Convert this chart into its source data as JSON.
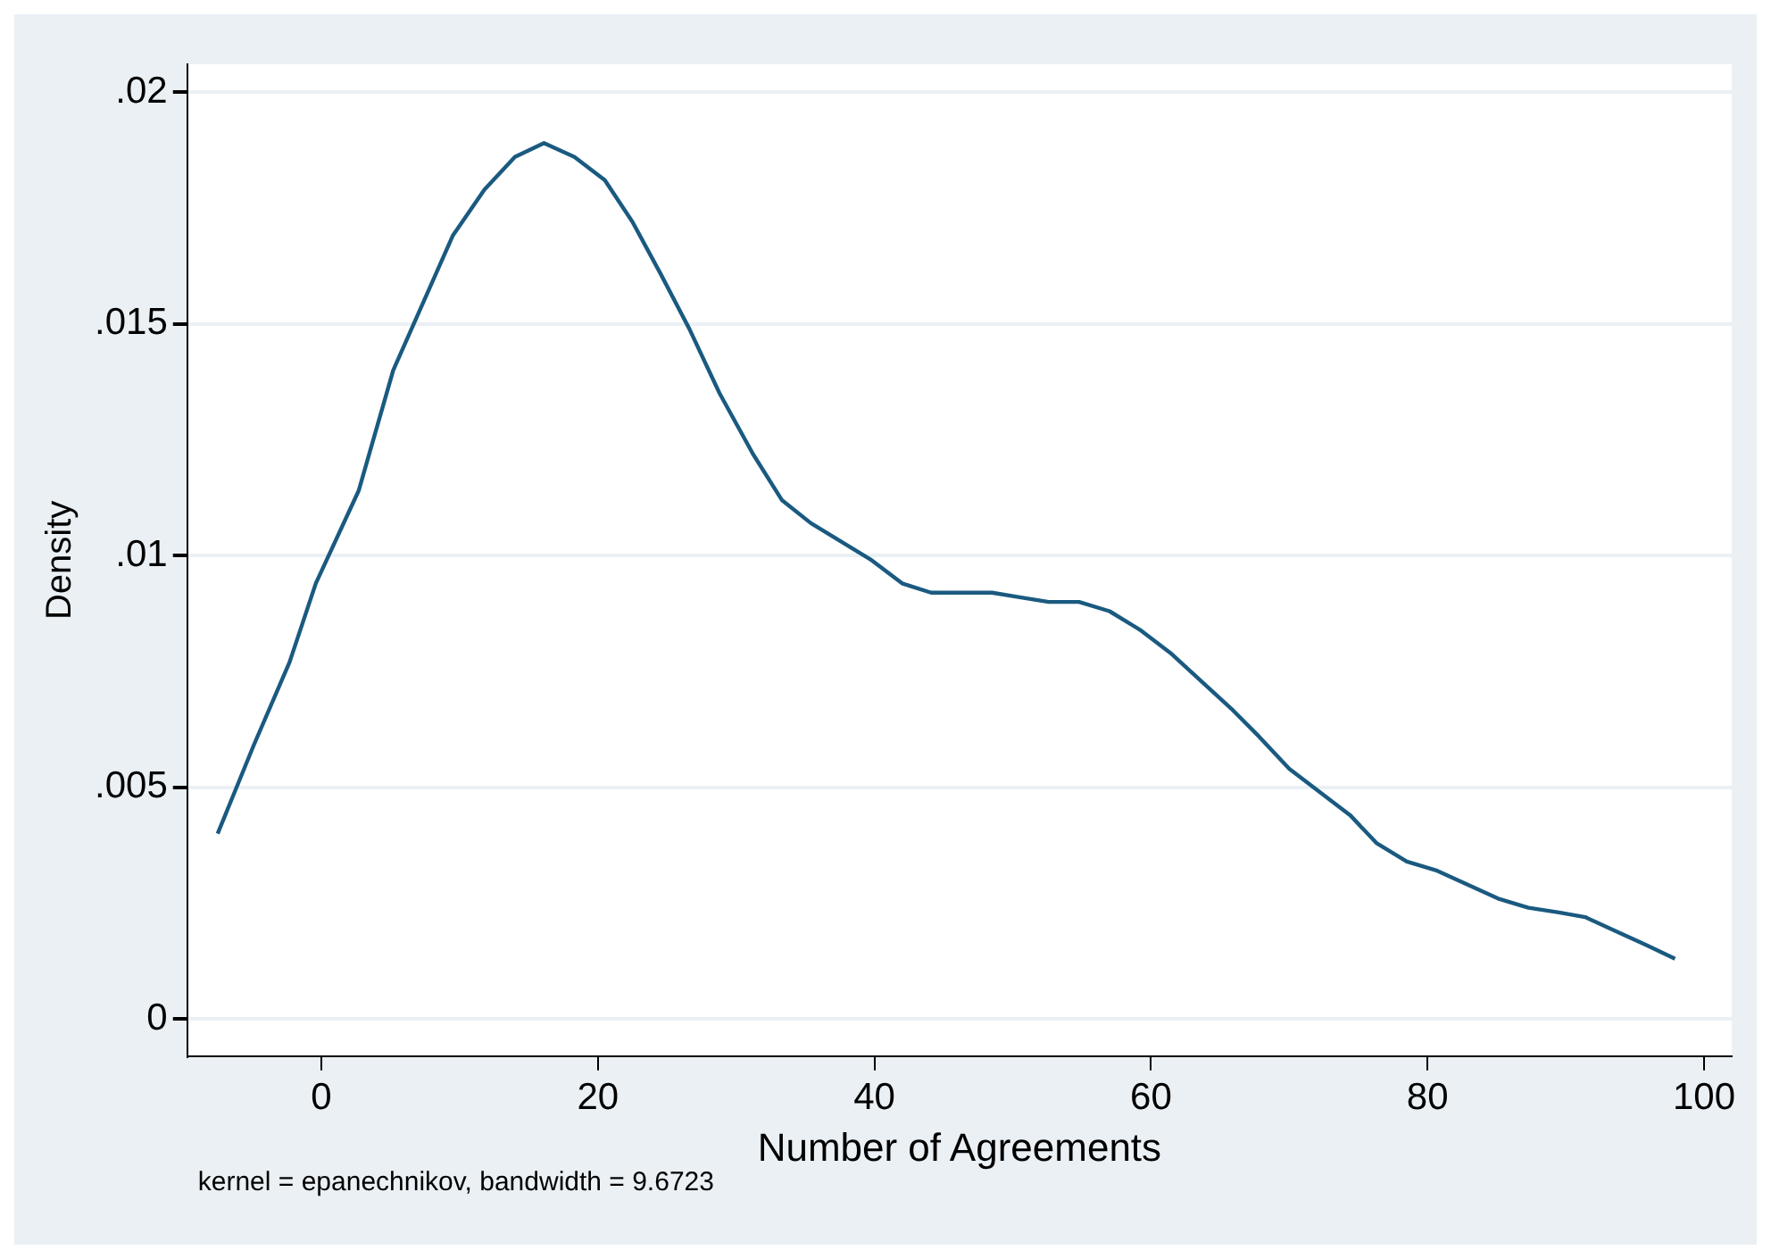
{
  "chart_data": {
    "type": "line",
    "xlabel": "Number of Agreements",
    "ylabel": "Density",
    "annotations": [
      "kernel = epanechnikov, bandwidth = 9.6723"
    ],
    "series": [
      {
        "color": "#1a5a80",
        "x": [
          -7.5,
          -4.9,
          -2.3,
          -0.4,
          2.7,
          5.2,
          9.5,
          11.8,
          14.0,
          16.1,
          18.3,
          20.5,
          22.5,
          24.5,
          26.6,
          28.8,
          31.2,
          33.3,
          35.4,
          37.6,
          39.8,
          42.0,
          44.1,
          46.3,
          48.5,
          50.5,
          52.6,
          54.8,
          57.0,
          59.2,
          61.4,
          63.6,
          65.8,
          67.8,
          70.0,
          72.2,
          74.4,
          76.3,
          78.5,
          80.7,
          82.9,
          85.1,
          87.3,
          89.5,
          91.4,
          93.6,
          95.8,
          97.9
        ],
        "values": [
          0.004,
          0.0059,
          0.0077,
          0.0094,
          0.0114,
          0.014,
          0.0169,
          0.0179,
          0.0186,
          0.0189,
          0.0186,
          0.0181,
          0.0172,
          0.0161,
          0.0149,
          0.0135,
          0.0122,
          0.0112,
          0.0107,
          0.0103,
          0.0099,
          0.0094,
          0.0092,
          0.0092,
          0.0092,
          0.0091,
          0.009,
          0.009,
          0.0088,
          0.0084,
          0.0079,
          0.0073,
          0.0067,
          0.0061,
          0.0054,
          0.0049,
          0.0044,
          0.0038,
          0.0034,
          0.0032,
          0.0029,
          0.0026,
          0.0024,
          0.0023,
          0.0022,
          0.0019,
          0.0016,
          0.0013
        ]
      }
    ],
    "xlim": [
      -9.7,
      102
    ],
    "xticks": [
      0,
      20,
      40,
      60,
      80,
      100
    ],
    "ylim": [
      -0.0008,
      0.0206
    ],
    "yticks": [
      {
        "value": 0,
        "label": "0"
      },
      {
        "value": 0.005,
        "label": ".005"
      },
      {
        "value": 0.01,
        "label": ".01"
      },
      {
        "value": 0.015,
        "label": ".015"
      },
      {
        "value": 0.02,
        "label": ".02"
      }
    ],
    "grid": "y",
    "marker": "none",
    "line_style": "solid",
    "legend": false
  }
}
